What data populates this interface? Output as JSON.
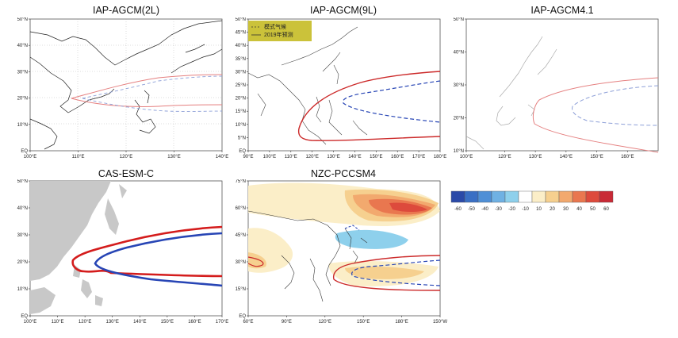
{
  "panels": [
    {
      "title": "IAP-AGCM(2L)",
      "xticks": [
        "100°E",
        "110°E",
        "120°E",
        "130°E",
        "140°E"
      ],
      "yticks": [
        "50°N",
        "40°N",
        "30°N",
        "20°N",
        "10°N",
        "EQ"
      ]
    },
    {
      "title": "IAP-AGCM(9L)",
      "xticks": [
        "90°E",
        "100°E",
        "110°E",
        "120°E",
        "130°E",
        "140°E",
        "150°E",
        "160°E",
        "170°E",
        "180°E"
      ],
      "yticks": [
        "50°N",
        "45°N",
        "40°N",
        "35°N",
        "30°N",
        "25°N",
        "20°N",
        "15°N",
        "10°N",
        "5°N",
        "EQ"
      ],
      "legend": {
        "dashed": "模式气候",
        "solid": "2019年预测"
      }
    },
    {
      "title": "IAP-AGCM4.1",
      "xticks": [
        "100°E",
        "120°E",
        "130°E",
        "140°E",
        "150°E",
        "160°E"
      ],
      "yticks": [
        "50°N",
        "40°N",
        "30°N",
        "20°N",
        "10°N"
      ]
    },
    {
      "title": "CAS-ESM-C",
      "xticks": [
        "100°E",
        "110°E",
        "120°E",
        "130°E",
        "140°E",
        "150°E",
        "160°E",
        "170°E"
      ],
      "yticks": [
        "50°N",
        "40°N",
        "30°N",
        "20°N",
        "10°N",
        "EQ"
      ]
    },
    {
      "title": "NZC-PCCSM4",
      "xticks": [
        "60°E",
        "90°E",
        "120°E",
        "150°E",
        "180°E",
        "150°W"
      ],
      "yticks": [
        "75°N",
        "60°N",
        "45°N",
        "30°N",
        "15°N",
        "EQ"
      ]
    }
  ],
  "colorbar": {
    "labels": [
      "-60",
      "-50",
      "-40",
      "-30",
      "-20",
      "-10",
      "10",
      "20",
      "30",
      "40",
      "50",
      "60"
    ],
    "colors": [
      "#2b4aa8",
      "#3a6fc4",
      "#4f8fd6",
      "#6fb1e3",
      "#8ed0ec",
      "#ffffff",
      "#fbeec8",
      "#f6d08f",
      "#f2a96e",
      "#e9774f",
      "#dd4a3c",
      "#c92a36"
    ]
  },
  "colors": {
    "red": "#d62728",
    "blue": "#2745b5",
    "land": "#c8c8c8",
    "legend_box": "#cbc23a"
  }
}
